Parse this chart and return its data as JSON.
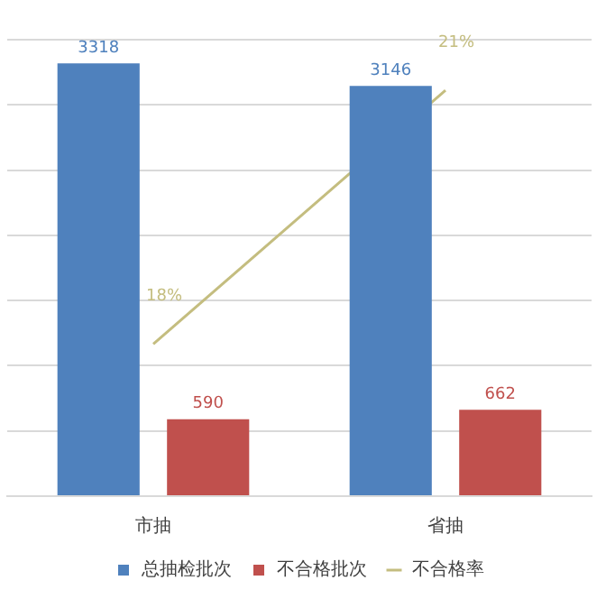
{
  "chart_data": {
    "type": "bar",
    "categories": [
      "市抽",
      "省抽"
    ],
    "series": [
      {
        "name": "总抽检批次",
        "color": "#4f81bd",
        "values": [
          3318,
          3146
        ],
        "value_labels": [
          "3318",
          "3146"
        ]
      },
      {
        "name": "不合格批次",
        "color": "#c0504d",
        "values": [
          590,
          662
        ],
        "value_labels": [
          "590",
          "662"
        ]
      },
      {
        "name": "不合格率",
        "type": "line",
        "axis": "y2",
        "color": "#c4bd7f",
        "values": [
          18,
          21
        ],
        "value_labels": [
          "18%",
          "21%"
        ]
      }
    ],
    "ylim": [
      0,
      3500
    ],
    "y2lim": [
      16.2,
      21.6
    ],
    "grid": "y",
    "tick_labels": "x",
    "legend": "bottom",
    "marker": "none",
    "line_style": "solid"
  }
}
